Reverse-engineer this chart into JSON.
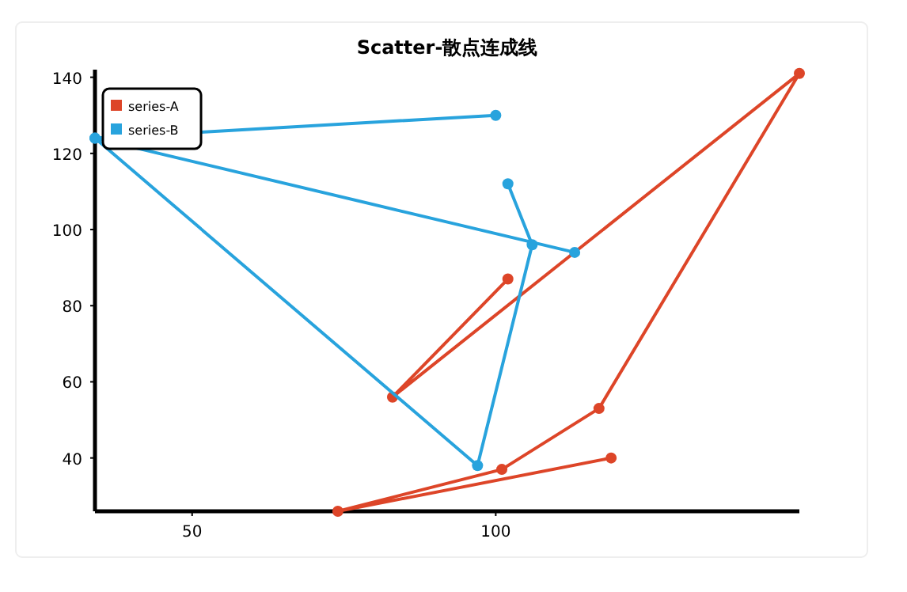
{
  "chart_data": {
    "type": "line",
    "title": "Scatter-散点连成线",
    "xlim": [
      34,
      150
    ],
    "ylim": [
      26,
      142
    ],
    "xticks": [
      50,
      100
    ],
    "yticks": [
      40,
      60,
      80,
      100,
      120,
      140
    ],
    "grid": false,
    "legend": "top left",
    "marker": "circle",
    "line_style": "solid",
    "series": [
      {
        "name": "series-A",
        "color": "#dd4528",
        "x": [
          102,
          83,
          150,
          117,
          101,
          74,
          119
        ],
        "values": [
          87,
          56,
          141,
          53,
          37,
          26,
          40
        ]
      },
      {
        "name": "series-B",
        "color": "#28a3dd",
        "x": [
          113,
          34,
          100,
          34,
          97,
          106,
          102
        ],
        "values": [
          94,
          124,
          130,
          124,
          38,
          96,
          112
        ]
      }
    ]
  }
}
